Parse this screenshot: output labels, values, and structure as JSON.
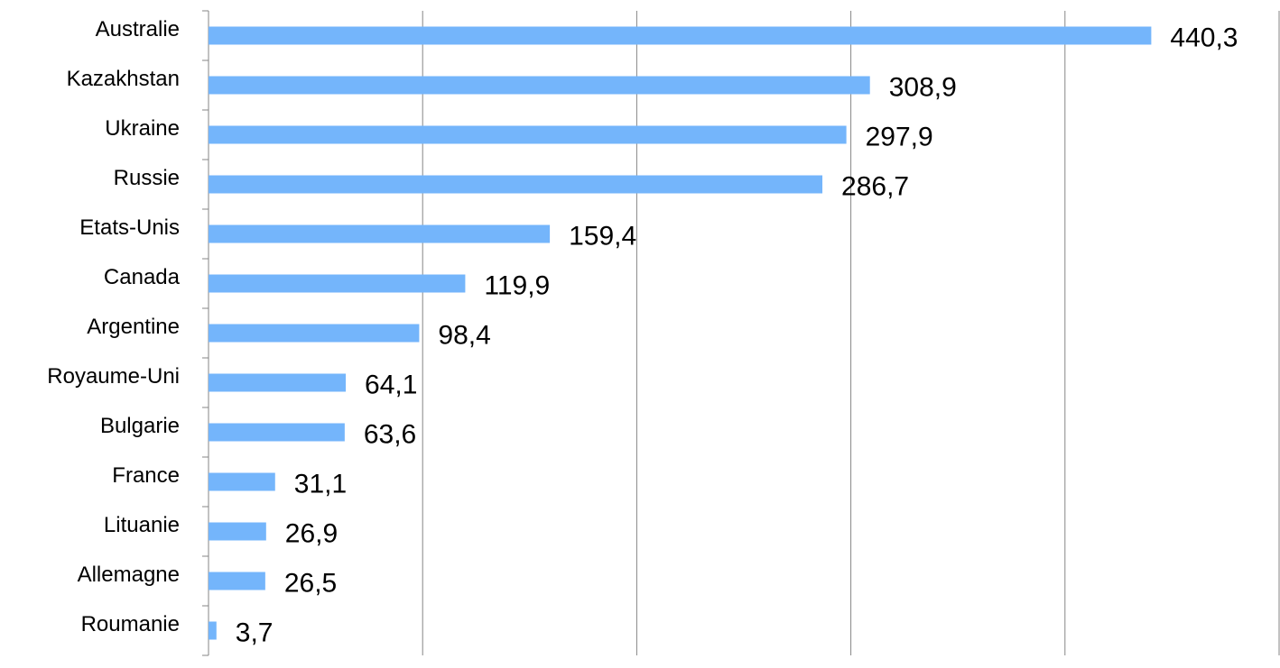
{
  "chart_data": {
    "type": "bar",
    "orientation": "horizontal",
    "categories": [
      "Australie",
      "Kazakhstan",
      "Ukraine",
      "Russie",
      "Etats-Unis",
      "Canada",
      "Argentine",
      "Royaume-Uni",
      "Bulgarie",
      "France",
      "Lituanie",
      "Allemagne",
      "Roumanie"
    ],
    "values": [
      440.3,
      308.9,
      297.9,
      286.7,
      159.4,
      119.9,
      98.4,
      64.1,
      63.6,
      31.1,
      26.9,
      26.5,
      3.7
    ],
    "value_labels": [
      "440,3",
      "308,9",
      "297,9",
      "286,7",
      "159,4",
      "119,9",
      "98,4",
      "64,1",
      "63,6",
      "31,1",
      "26,9",
      "26,5",
      "3,7"
    ],
    "color": "#74b5fb",
    "xlim": [
      0,
      500
    ],
    "xticks": [
      0,
      100,
      200,
      300,
      400,
      500
    ],
    "grid": true
  }
}
